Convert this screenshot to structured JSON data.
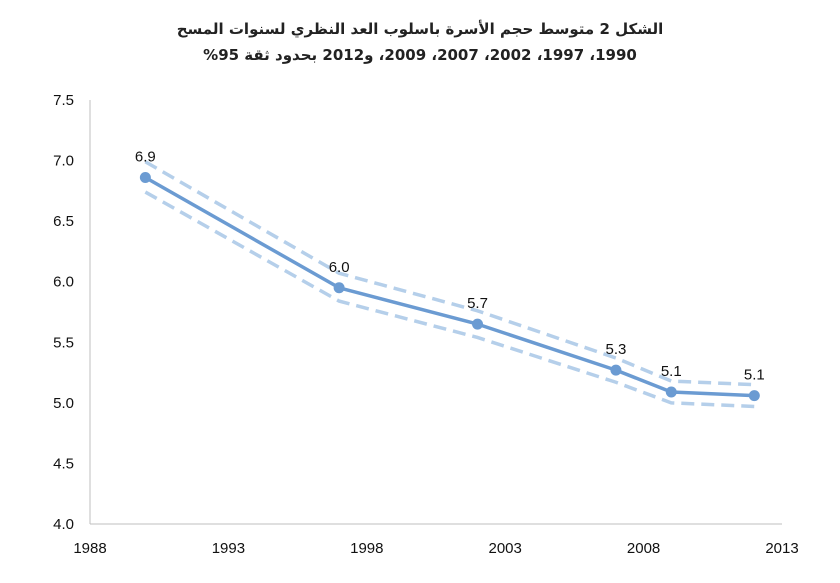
{
  "chart_data": {
    "type": "line",
    "title": "الشكل 2 متوسط حجم الأسرة باسلوب العد النظري لسنوات المسح",
    "subtitle": "1990، 1997، 2002، 2007، 2009، و2012 بحدود ثقة 95%",
    "xlabel": "",
    "ylabel": "",
    "xlim": [
      1988,
      2013
    ],
    "ylim": [
      4.0,
      7.5
    ],
    "x_ticks": [
      "1988",
      "1993",
      "1998",
      "2003",
      "2008",
      "2013"
    ],
    "y_ticks": [
      "4.0",
      "4.5",
      "5.0",
      "5.5",
      "6.0",
      "6.5",
      "7.0",
      "7.5"
    ],
    "grid": false,
    "series": [
      {
        "role": "estimate",
        "x": [
          1990,
          1997,
          2002,
          2007,
          2009,
          2012
        ],
        "values": [
          6.86,
          5.95,
          5.65,
          5.27,
          5.09,
          5.06
        ],
        "labels": [
          "6.9",
          "6.0",
          "5.7",
          "5.3",
          "5.1",
          "5.1"
        ],
        "color": "#6b9bd2"
      },
      {
        "role": "upper-95",
        "x": [
          1990,
          1997,
          2002,
          2007,
          2009,
          2012
        ],
        "values": [
          6.99,
          6.07,
          5.76,
          5.37,
          5.18,
          5.15
        ],
        "color": "#b5cfea"
      },
      {
        "role": "lower-95",
        "x": [
          1990,
          1997,
          2002,
          2007,
          2009,
          2012
        ],
        "values": [
          6.74,
          5.84,
          5.54,
          5.17,
          5.0,
          4.97
        ],
        "color": "#b5cfea"
      }
    ]
  }
}
